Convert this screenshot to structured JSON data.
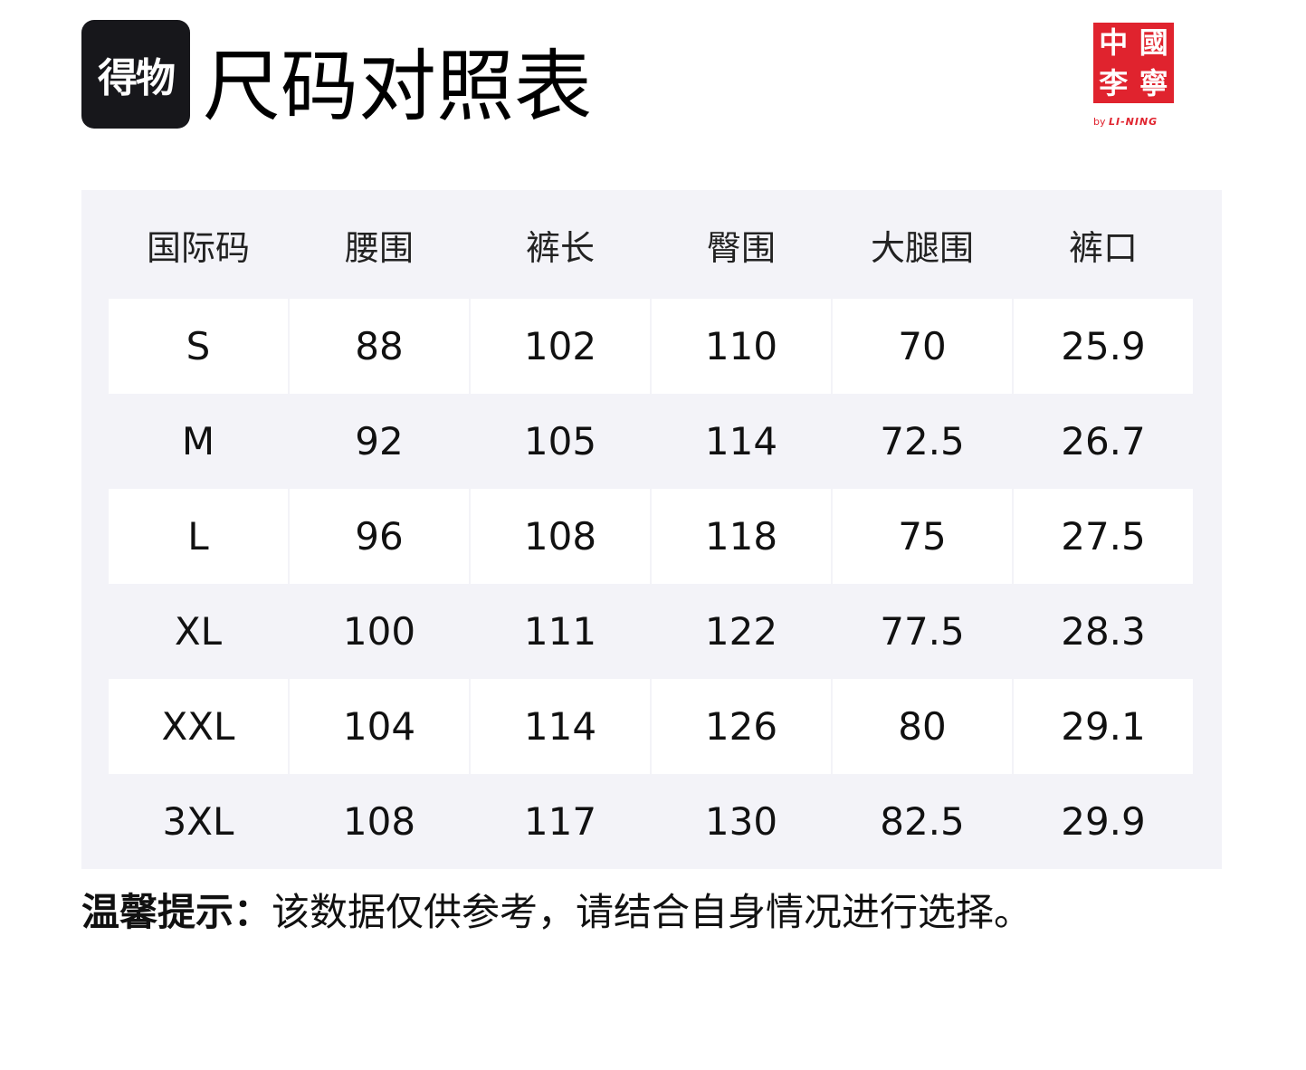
{
  "header": {
    "logo_text": "得物",
    "title": "尺码对照表",
    "brand_chars": [
      "中",
      "國",
      "李",
      "寧"
    ],
    "brand_by": "by",
    "brand_name": "LI-NING"
  },
  "table": {
    "columns": [
      "国际码",
      "腰围",
      "裤长",
      "臀围",
      "大腿围",
      "裤口"
    ],
    "rows": [
      [
        "S",
        "88",
        "102",
        "110",
        "70",
        "25.9"
      ],
      [
        "M",
        "92",
        "105",
        "114",
        "72.5",
        "26.7"
      ],
      [
        "L",
        "96",
        "108",
        "118",
        "75",
        "27.5"
      ],
      [
        "XL",
        "100",
        "111",
        "122",
        "77.5",
        "28.3"
      ],
      [
        "XXL",
        "104",
        "114",
        "126",
        "80",
        "29.1"
      ],
      [
        "3XL",
        "108",
        "117",
        "130",
        "82.5",
        "29.9"
      ]
    ]
  },
  "note": {
    "label": "温馨提示：",
    "text": "该数据仅供参考，请结合自身情况进行选择。"
  },
  "colors": {
    "table_bg": "#f3f3f8",
    "brand_red": "#e0232e",
    "logo_bg": "#17171b"
  }
}
